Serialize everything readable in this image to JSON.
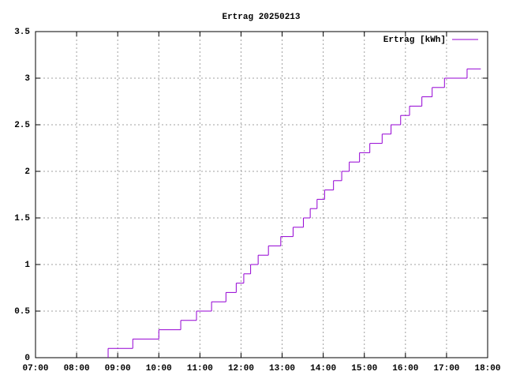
{
  "chart_data": {
    "type": "step",
    "title": "Ertrag 20250213",
    "series": [
      {
        "name": "Ertrag [kWh]",
        "color": "#9400d3",
        "x": [
          "08:46",
          "08:46",
          "09:22",
          "10:00",
          "10:32",
          "10:55",
          "11:17",
          "11:38",
          "11:53",
          "12:04",
          "12:14",
          "12:25",
          "12:40",
          "12:58",
          "13:16",
          "13:31",
          "13:41",
          "13:51",
          "14:02",
          "14:15",
          "14:27",
          "14:38",
          "14:53",
          "15:08",
          "15:26",
          "15:39",
          "15:53",
          "16:06",
          "16:24",
          "16:39",
          "16:57",
          "17:30",
          "17:50"
        ],
        "values": [
          0,
          0.1,
          0.2,
          0.3,
          0.4,
          0.5,
          0.6,
          0.7,
          0.8,
          0.9,
          1.0,
          1.1,
          1.2,
          1.3,
          1.4,
          1.5,
          1.6,
          1.7,
          1.8,
          1.9,
          2.0,
          2.1,
          2.2,
          2.3,
          2.4,
          2.5,
          2.6,
          2.7,
          2.8,
          2.9,
          3.0,
          3.1,
          3.1
        ]
      }
    ],
    "xlim": [
      "07:00",
      "18:00"
    ],
    "xticks": [
      "07:00",
      "08:00",
      "09:00",
      "10:00",
      "11:00",
      "12:00",
      "13:00",
      "14:00",
      "15:00",
      "16:00",
      "17:00",
      "18:00"
    ],
    "ylim": [
      0,
      3.5
    ],
    "yticks": [
      0,
      0.5,
      1,
      1.5,
      2,
      2.5,
      3,
      3.5
    ],
    "grid": true,
    "legend": "top-right"
  }
}
